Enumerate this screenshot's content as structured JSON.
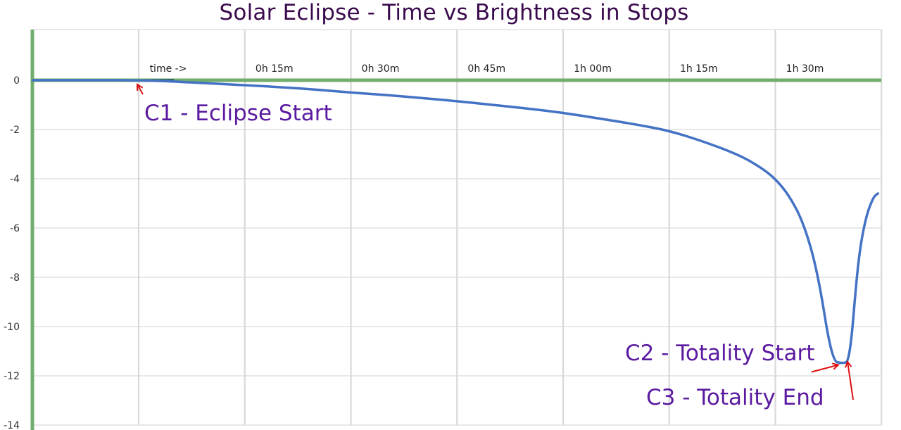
{
  "chart_data": {
    "type": "line",
    "title": "Solar Eclipse - Time vs Brightness in Stops",
    "xlabel": "",
    "ylabel": "",
    "x_tick_labels": [
      "time ->",
      "0h 15m",
      "0h 30m",
      "0h 45m",
      "1h 00m",
      "1h 15m",
      "1h 30m"
    ],
    "y_tick_labels": [
      "0",
      "-2",
      "-4",
      "-6",
      "-8",
      "-10",
      "-12",
      "-14"
    ],
    "xlim_minutes": [
      -15,
      105
    ],
    "ylim": [
      -14,
      2.8
    ],
    "grid": true,
    "legend": false,
    "series_color": "#4472c4",
    "axis_color": "#72ad6e",
    "annotation_color": "#5b1aa0",
    "arrow_color": "#dd1111",
    "series": [
      {
        "x_minutes": [
          -15,
          -10,
          -5,
          0,
          5,
          10,
          15,
          20,
          25,
          30,
          35,
          40,
          45,
          50,
          55,
          60,
          65,
          70,
          75,
          80,
          85,
          88,
          90,
          92,
          94,
          96,
          98,
          99.5,
          100.5,
          101.5,
          102,
          102.5,
          103,
          103.5,
          104,
          104.5
        ],
        "values": [
          0,
          0,
          0,
          0,
          -0.05,
          -0.13,
          -0.2,
          -0.28,
          -0.38,
          -0.5,
          -0.6,
          -0.72,
          -0.85,
          -1.0,
          -1.15,
          -1.32,
          -1.55,
          -1.78,
          -2.05,
          -2.5,
          -3.05,
          -3.55,
          -4.0,
          -4.7,
          -5.8,
          -7.8,
          -11.4,
          -11.5,
          -11.4,
          -8.0,
          -6.8,
          -6.0,
          -5.4,
          -5.0,
          -4.7,
          -4.6
        ]
      }
    ],
    "annotations": [
      {
        "text": "C1 - Eclipse Start",
        "x_minutes": 0,
        "y": 0
      },
      {
        "text": "C2 - Totality Start",
        "x_minutes": 99.5,
        "y": -11.5
      },
      {
        "text": "C3 - Totality End",
        "x_minutes": 100.5,
        "y": -11.5
      }
    ]
  }
}
